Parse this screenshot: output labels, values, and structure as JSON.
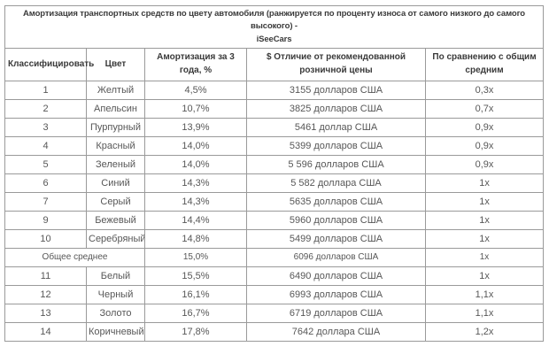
{
  "colors": {
    "border": "#9a9a9a",
    "heading_text": "#3a3a3a",
    "body_text": "#575757",
    "background": "#ffffff"
  },
  "chart_data": {
    "type": "table",
    "title": "Амортизация транспортных средств по цвету автомобиля (ранжируется по проценту износа от самого низкого до самого высокого) - iSeeCars",
    "title_wrap": [
      "Амортизация транспортных средств по цвету автомобиля (ранжируется по проценту износа от самого низкого до самого высокого) -",
      "iSeeCars"
    ],
    "columns": [
      "Классифицировать",
      "Цвет",
      "Амортизация за 3 года, %",
      "$ Отличие от рекомендованной розничной цены",
      "По сравнению с общим средним"
    ],
    "rows": [
      {
        "rank": "1",
        "color": "Желтый",
        "depreciation_3yr": "4,5%",
        "msrp_difference": "3155 долларов США",
        "vs_overall_average": "0,3x"
      },
      {
        "rank": "2",
        "color": "Апельсин",
        "depreciation_3yr": "10,7%",
        "msrp_difference": "3825 долларов США",
        "vs_overall_average": "0,7x"
      },
      {
        "rank": "3",
        "color": "Пурпурный",
        "depreciation_3yr": "13,9%",
        "msrp_difference": "5461 доллар США",
        "vs_overall_average": "0,9x"
      },
      {
        "rank": "4",
        "color": "Красный",
        "depreciation_3yr": "14,0%",
        "msrp_difference": "5399 долларов США",
        "vs_overall_average": "0,9x"
      },
      {
        "rank": "5",
        "color": "Зеленый",
        "depreciation_3yr": "14,0%",
        "msrp_difference": "5 596 долларов США",
        "vs_overall_average": "0,9x"
      },
      {
        "rank": "6",
        "color": "Синий",
        "depreciation_3yr": "14,3%",
        "msrp_difference": "5 582 доллара США",
        "vs_overall_average": "1x"
      },
      {
        "rank": "7",
        "color": "Серый",
        "depreciation_3yr": "14,3%",
        "msrp_difference": "5635 долларов США",
        "vs_overall_average": "1x"
      },
      {
        "rank": "9",
        "color": "Бежевый",
        "depreciation_3yr": "14,4%",
        "msrp_difference": "5960 долларов США",
        "vs_overall_average": "1x"
      },
      {
        "rank": "10",
        "color": "Серебряный",
        "depreciation_3yr": "14,8%",
        "msrp_difference": "5499 долларов США",
        "vs_overall_average": "1x"
      },
      {
        "average": true,
        "label": "Общее среднее",
        "depreciation_3yr": "15,0%",
        "msrp_difference": "6096 долларов США",
        "vs_overall_average": "1x"
      },
      {
        "rank": "11",
        "color": "Белый",
        "depreciation_3yr": "15,5%",
        "msrp_difference": "6490 долларов США",
        "vs_overall_average": "1x"
      },
      {
        "rank": "12",
        "color": "Черный",
        "depreciation_3yr": "16,1%",
        "msrp_difference": "6993 долларов США",
        "vs_overall_average": "1,1x"
      },
      {
        "rank": "13",
        "color": "Золото",
        "depreciation_3yr": "16,7%",
        "msrp_difference": "6719 долларов США",
        "vs_overall_average": "1,1x"
      },
      {
        "rank": "14",
        "color": "Коричневый",
        "depreciation_3yr": "17,8%",
        "msrp_difference": "7642 доллара США",
        "vs_overall_average": "1,2x"
      }
    ]
  }
}
